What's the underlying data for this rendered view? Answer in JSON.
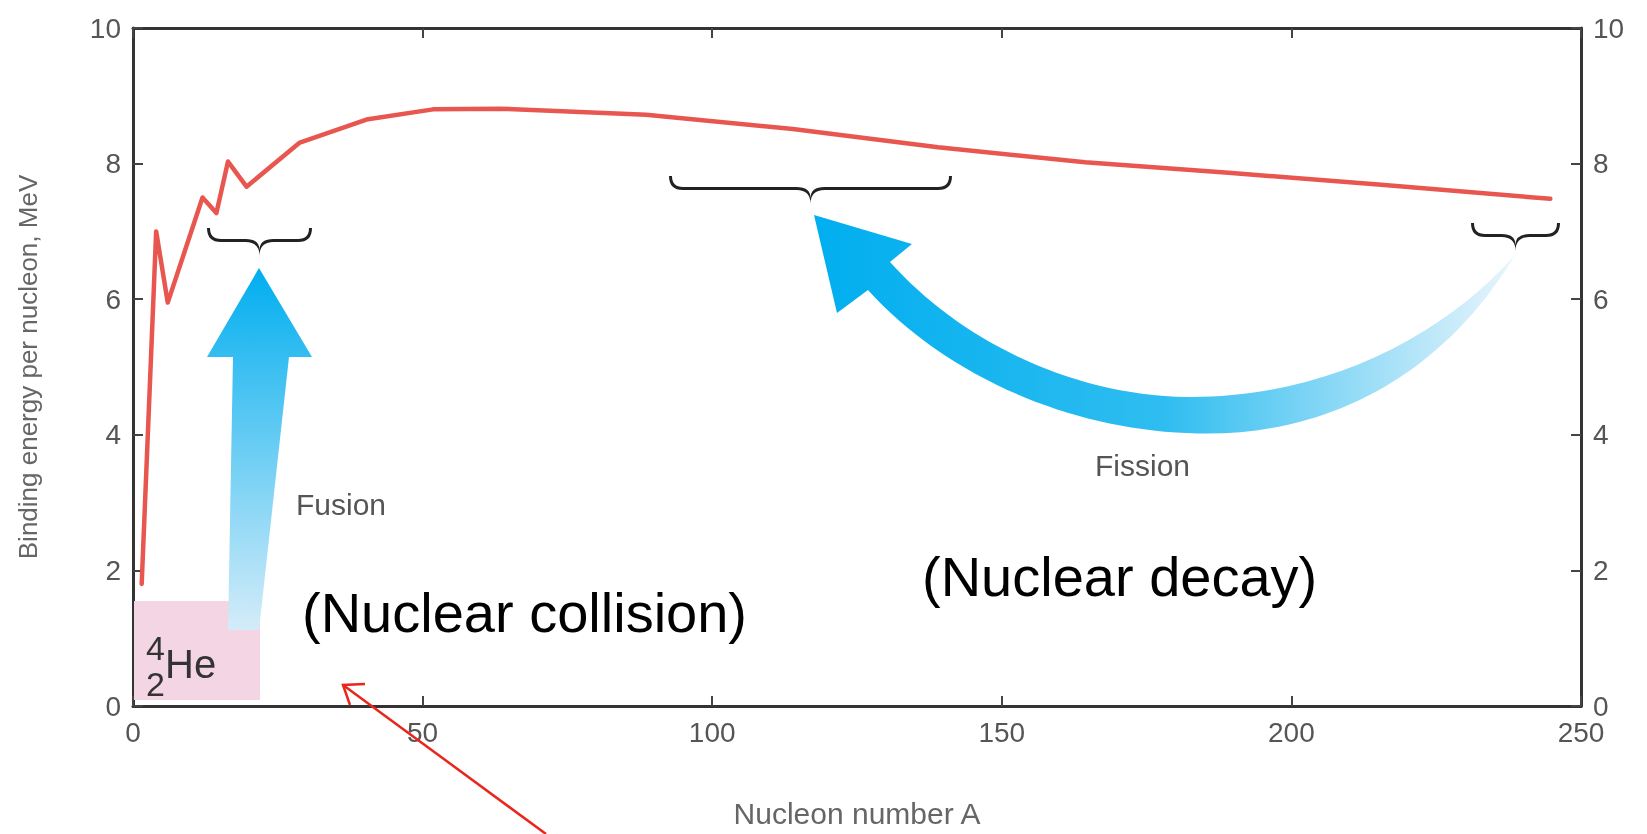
{
  "chart_data": {
    "type": "line",
    "xlabel": "Nucleon number A",
    "ylabel": "Binding energy per nucleon, MeV",
    "x": [
      1.5,
      4,
      6,
      12,
      14.4,
      16.4,
      19.6,
      28.8,
      40.3,
      51.8,
      63.3,
      88.6,
      113.9,
      139,
      164.4,
      189.7,
      215,
      244.7
    ],
    "series": [
      {
        "color": "#e8574f",
        "values": [
          1.8,
          7.0,
          5.95,
          7.5,
          7.27,
          8.03,
          7.66,
          8.31,
          8.65,
          8.8,
          8.81,
          8.72,
          8.51,
          8.24,
          8.02,
          7.86,
          7.69,
          7.48
        ]
      }
    ],
    "xlim": [
      0,
      250
    ],
    "xticks": [
      0,
      50,
      100,
      150,
      200,
      250
    ],
    "ylim": [
      0,
      10
    ],
    "yticks": [
      0,
      2,
      4,
      6,
      8,
      10
    ],
    "y2lim": [
      0,
      10
    ],
    "y2ticks": [
      0,
      2,
      4,
      6,
      8,
      10
    ],
    "grid": false,
    "marker": "none",
    "line_style": "solid",
    "annotations": [
      "Fusion",
      "Fission",
      "(Nuclear collision)",
      "(Nuclear decay)",
      "$^{4}$$_{2}$He"
    ]
  }
}
